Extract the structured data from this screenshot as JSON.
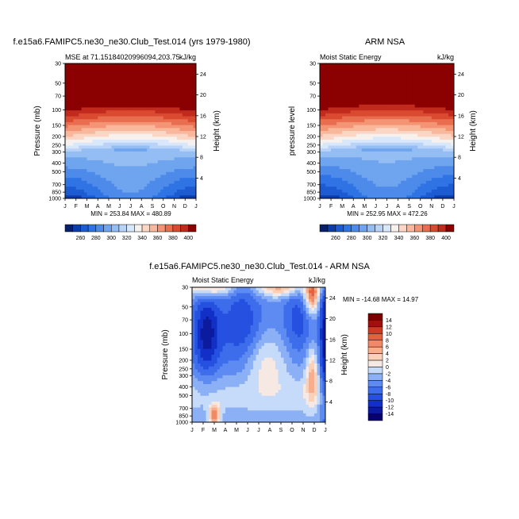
{
  "chart_data": [
    {
      "type": "heatmap",
      "panel": "model",
      "title": "f.e15a6.FAMIPC5.ne30_ne30.Club_Test.014 (yrs 1979-1980)",
      "subtitle_left": "MSE at 71.15184020996094,203.75",
      "subtitle_right": "kJ/kg",
      "xlabel": "",
      "ylabel": "Pressure (mb)",
      "ylabel_right": "Height (km)",
      "x_ticks": [
        "J",
        "F",
        "M",
        "A",
        "M",
        "J",
        "J",
        "A",
        "S",
        "O",
        "N",
        "D",
        "J"
      ],
      "y_ticks": [
        "30",
        "50",
        "70",
        "100",
        "150",
        "200",
        "250",
        "300",
        "400",
        "500",
        "700",
        "850",
        "1000"
      ],
      "y_ticks_right": [
        "24",
        "20",
        "16",
        "12",
        "8",
        "4"
      ],
      "stats": "MIN = 253.84  MAX = 480.89",
      "colorbar_labels": [
        "260",
        "280",
        "300",
        "320",
        "340",
        "360",
        "380",
        "400"
      ],
      "contour_levels": [
        250,
        260,
        270,
        280,
        290,
        300,
        310,
        320,
        330,
        340,
        350,
        360,
        370,
        380,
        390,
        400,
        410
      ],
      "min": 253.84,
      "max": 480.89
    },
    {
      "type": "heatmap",
      "panel": "obs",
      "title": "ARM NSA",
      "subtitle_left": "Moist Static Energy",
      "subtitle_right": "kJ/kg",
      "xlabel": "",
      "ylabel": "pressure level",
      "ylabel_right": "Height (km)",
      "x_ticks": [
        "J",
        "F",
        "M",
        "A",
        "M",
        "J",
        "J",
        "A",
        "S",
        "O",
        "N",
        "D",
        "J"
      ],
      "y_ticks": [
        "30",
        "50",
        "70",
        "100",
        "150",
        "200",
        "250",
        "300",
        "400",
        "500",
        "700",
        "850",
        "1000"
      ],
      "y_ticks_right": [
        "24",
        "20",
        "16",
        "12",
        "8",
        "4"
      ],
      "stats": "MIN = 252.95  MAX = 472.26",
      "colorbar_labels": [
        "260",
        "280",
        "300",
        "320",
        "340",
        "360",
        "380",
        "400"
      ],
      "min": 252.95,
      "max": 472.26
    },
    {
      "type": "heatmap",
      "panel": "difference",
      "title": "f.e15a6.FAMIPC5.ne30_ne30.Club_Test.014 - ARM NSA",
      "subtitle_left": "Moist Static Energy",
      "subtitle_right": "kJ/kg",
      "xlabel": "",
      "ylabel": "Pressure (mb)",
      "ylabel_right": "Height (km)",
      "x_ticks": [
        "J",
        "F",
        "M",
        "A",
        "M",
        "J",
        "J",
        "A",
        "S",
        "O",
        "N",
        "D",
        "J"
      ],
      "y_ticks": [
        "30",
        "50",
        "70",
        "100",
        "150",
        "200",
        "250",
        "300",
        "400",
        "500",
        "700",
        "850",
        "1000"
      ],
      "y_ticks_right": [
        "24",
        "20",
        "16",
        "12",
        "8",
        "4"
      ],
      "stats": "MIN = -14.68 MAX =  14.97",
      "colorbar_labels": [
        "14",
        "12",
        "10",
        "8",
        "6",
        "4",
        "2",
        "0",
        "-2",
        "-4",
        "-6",
        "-8",
        "-10",
        "-12",
        "-14"
      ],
      "contour_levels": [
        -15,
        -13,
        -11,
        -9,
        -7,
        -5,
        -3,
        -1,
        1,
        3,
        5,
        7,
        9,
        11,
        13,
        15
      ],
      "min": -14.68,
      "max": 14.97
    }
  ],
  "palettes": {
    "mse": [
      "#08206b",
      "#0c3da8",
      "#1d5bd2",
      "#2f73e4",
      "#4d8ae9",
      "#6fa4ee",
      "#93bdf3",
      "#b8d3f7",
      "#d9e7fb",
      "#f7f1ee",
      "#fbd6c4",
      "#f9b79b",
      "#f39475",
      "#e96e50",
      "#d94a31",
      "#c12b1d",
      "#8b0000"
    ],
    "diff": [
      "#08006b",
      "#0c1a9e",
      "#1230c8",
      "#2550e0",
      "#3e6deb",
      "#5d8bf2",
      "#8cb0f6",
      "#c6dafa",
      "#f6e9e3",
      "#fbd0b8",
      "#f8ae8c",
      "#f08a64",
      "#e4603f",
      "#d03a22",
      "#a01010",
      "#7a0000"
    ]
  }
}
